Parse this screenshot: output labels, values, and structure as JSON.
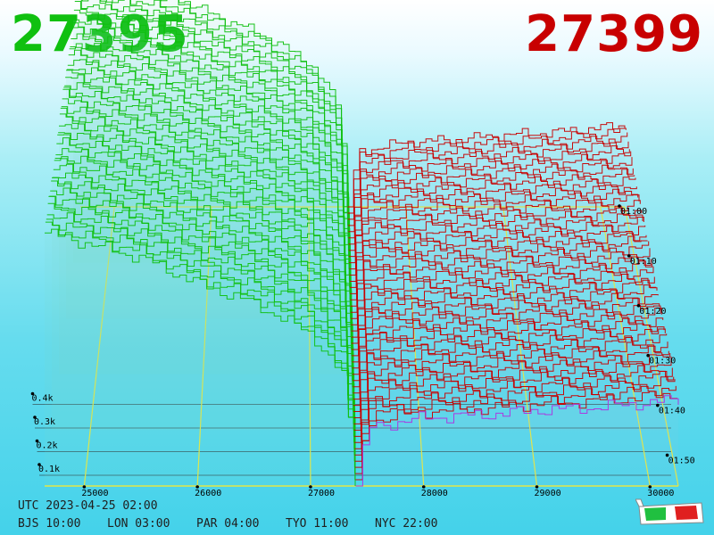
{
  "header": {
    "bid_price": "27395",
    "ask_price": "27399"
  },
  "colors": {
    "bid": "#10c010",
    "ask": "#c80000",
    "accent_recent": "#b030e0",
    "grid": "#e8e840"
  },
  "footer": {
    "utc": "UTC 2023-04-25 02:00",
    "zones": [
      "BJS 10:00",
      "LON 03:00",
      "PAR 04:00",
      "TYO 11:00",
      "NYC 22:00"
    ]
  },
  "chart_data": {
    "type": "area",
    "title": "",
    "x_axis": {
      "label": "",
      "range": [
        24650,
        30250
      ],
      "ticks": [
        25000,
        26000,
        27000,
        28000,
        29000,
        30000
      ]
    },
    "volume_axis": {
      "ticks": [
        "0.1k",
        "0.2k",
        "0.3k",
        "0.4k"
      ]
    },
    "time_axis": {
      "ticks": [
        "01:00",
        "01:10",
        "01:20",
        "01:30",
        "01:40",
        "01:50"
      ]
    },
    "mid_price": 27397,
    "series": [
      {
        "name": "",
        "side": "bid",
        "x": [
          24650,
          25000,
          25500,
          26000,
          26500,
          27000,
          27300,
          27395
        ],
        "depth_profile": [
          1.0,
          0.96,
          0.9,
          0.8,
          0.72,
          0.6,
          0.42,
          0.0
        ]
      },
      {
        "name": "",
        "side": "ask",
        "x": [
          27399,
          27500,
          28000,
          28500,
          29000,
          29500,
          30000,
          30250
        ],
        "depth_profile": [
          0.0,
          0.23,
          0.27,
          0.28,
          0.3,
          0.31,
          0.33,
          0.34
        ]
      }
    ],
    "snapshots": 46,
    "grid": true
  }
}
